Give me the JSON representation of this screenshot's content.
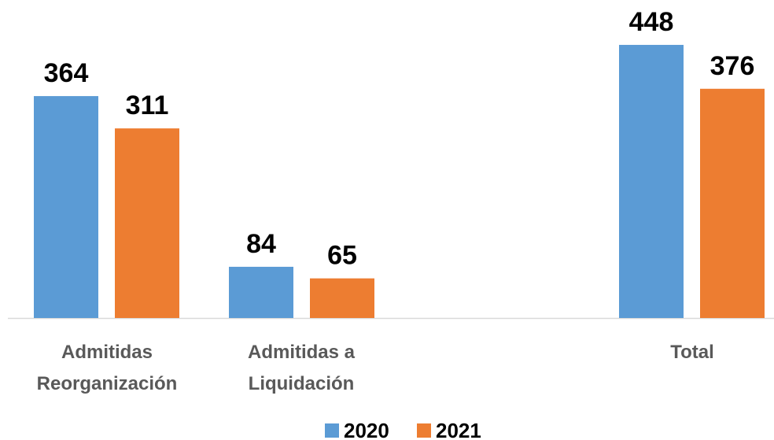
{
  "chart_data": {
    "type": "bar",
    "categories": [
      [
        "Admitidas",
        "Reorganización"
      ],
      [
        "Admitidas a",
        "Liquidación"
      ],
      [
        "Total"
      ]
    ],
    "series": [
      {
        "name": "2020",
        "values": [
          364,
          84,
          448
        ],
        "color": "#5B9BD5"
      },
      {
        "name": "2021",
        "values": [
          311,
          65,
          376
        ],
        "color": "#ED7D31"
      }
    ],
    "ylim": [
      0,
      480
    ],
    "grid": false,
    "legend_position": "bottom"
  }
}
